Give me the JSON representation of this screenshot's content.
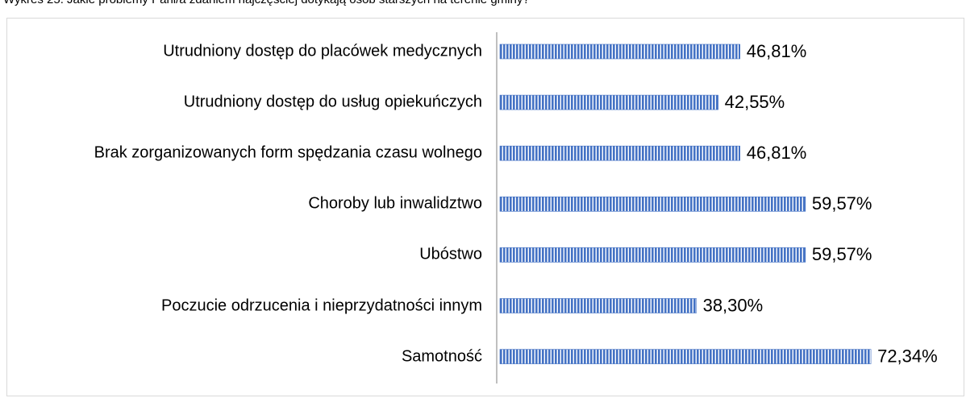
{
  "chart_data": {
    "type": "bar",
    "orientation": "horizontal",
    "title": "Wykres 25. Jakie problemy Pani/a zdaniem najczęściej dotykają osób starszych na terenie gminy?",
    "categories": [
      "Utrudniony dostęp do placówek medycznych",
      "Utrudniony dostęp do usług opiekuńczych",
      "Brak zorganizowanych form spędzania czasu wolnego",
      "Choroby lub inwalidztwo",
      "Ubóstwo",
      "Poczucie odrzucenia i nieprzydatności innym",
      "Samotność"
    ],
    "values": [
      46.81,
      42.55,
      46.81,
      59.57,
      59.57,
      38.3,
      72.34
    ],
    "value_labels": [
      "46,81%",
      "42,55%",
      "46,81%",
      "59,57%",
      "59,57%",
      "38,30%",
      "72,34%"
    ],
    "color": "#4472c4"
  }
}
